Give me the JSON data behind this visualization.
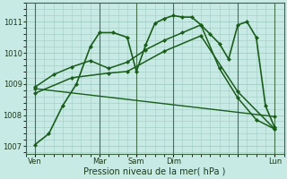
{
  "background_color": "#c8eae4",
  "grid_color": "#a0ccc4",
  "line_color": "#1a5c1a",
  "marker_color": "#1a5c1a",
  "xlabel": "Pression niveau de la mer( hPa )",
  "ylim": [
    1006.75,
    1011.6
  ],
  "yticks": [
    1007,
    1008,
    1009,
    1010,
    1011
  ],
  "xlim": [
    0,
    28
  ],
  "xtick_positions": [
    1,
    8,
    12,
    16,
    23,
    27
  ],
  "xtick_labels": [
    "Ven",
    "Mar",
    "Sam",
    "Dim",
    "",
    "Lun"
  ],
  "vline_positions": [
    1,
    8,
    12,
    16,
    23,
    27
  ],
  "series": [
    {
      "x": [
        1,
        2.5,
        4,
        5.5,
        7,
        8,
        9.5,
        11,
        12,
        13,
        14,
        15,
        16,
        17,
        18,
        19,
        20,
        21,
        22,
        23,
        24,
        25,
        26,
        27
      ],
      "y": [
        1007.05,
        1007.4,
        1008.3,
        1009.0,
        1010.2,
        1010.65,
        1010.65,
        1010.5,
        1009.4,
        1010.25,
        1010.95,
        1011.1,
        1011.2,
        1011.15,
        1011.15,
        1010.9,
        1010.6,
        1010.3,
        1009.8,
        1010.9,
        1011.0,
        1010.5,
        1008.3,
        1007.6
      ],
      "lw": 1.2
    },
    {
      "x": [
        1,
        3,
        5,
        7,
        9,
        11,
        13,
        15,
        17,
        19,
        21,
        23,
        25,
        27
      ],
      "y": [
        1008.9,
        1009.3,
        1009.55,
        1009.75,
        1009.5,
        1009.7,
        1010.1,
        1010.4,
        1010.65,
        1010.9,
        1009.5,
        1008.55,
        1007.85,
        1007.55
      ],
      "lw": 1.1
    },
    {
      "x": [
        1,
        5,
        9,
        11,
        15,
        19,
        23,
        27
      ],
      "y": [
        1008.7,
        1009.2,
        1009.35,
        1009.4,
        1010.05,
        1010.55,
        1008.75,
        1007.55
      ],
      "lw": 1.1
    },
    {
      "x": [
        1,
        27
      ],
      "y": [
        1008.85,
        1007.95
      ],
      "lw": 1.0
    }
  ]
}
